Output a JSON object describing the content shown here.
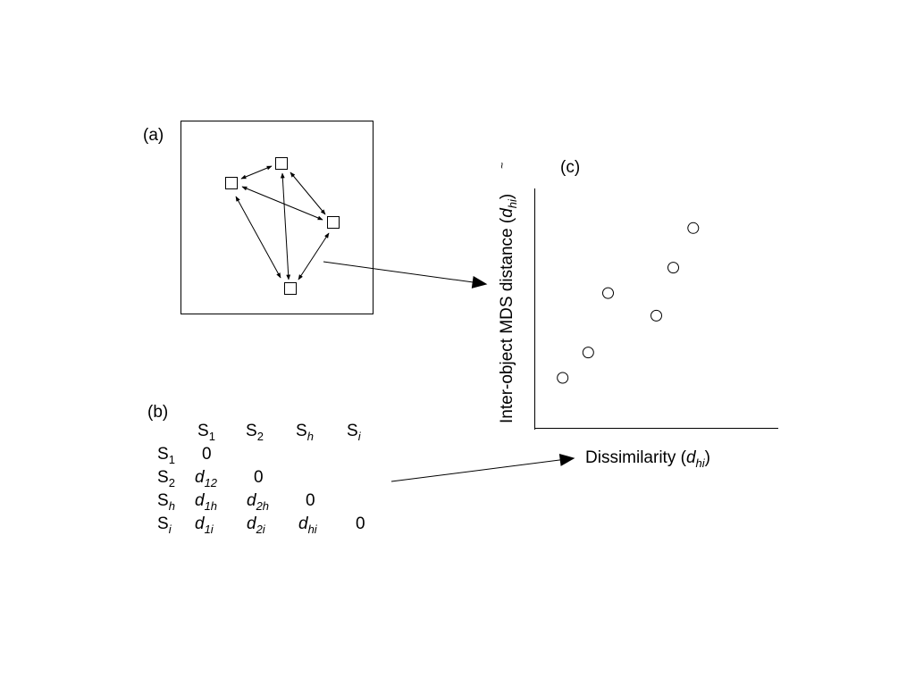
{
  "panel_a": {
    "label": "(a)"
  },
  "panel_b": {
    "label": "(b)",
    "col_headers": [
      {
        "base": "S",
        "sub": "1",
        "sub_italic": false
      },
      {
        "base": "S",
        "sub": "2",
        "sub_italic": false
      },
      {
        "base": "S",
        "sub": "h",
        "sub_italic": true
      },
      {
        "base": "S",
        "sub": "i",
        "sub_italic": true
      }
    ],
    "row_headers": [
      {
        "base": "S",
        "sub": "1",
        "sub_italic": false
      },
      {
        "base": "S",
        "sub": "2",
        "sub_italic": false
      },
      {
        "base": "S",
        "sub": "h",
        "sub_italic": true
      },
      {
        "base": "S",
        "sub": "i",
        "sub_italic": true
      }
    ],
    "rows": [
      [
        {
          "base": "0",
          "sub": "",
          "italic": false
        }
      ],
      [
        {
          "base": "d",
          "sub": "12",
          "italic": true
        },
        {
          "base": "0",
          "sub": "",
          "italic": false
        }
      ],
      [
        {
          "base": "d",
          "sub": "1h",
          "italic": true
        },
        {
          "base": "d",
          "sub": "2h",
          "italic": true
        },
        {
          "base": "0",
          "sub": "",
          "italic": false
        }
      ],
      [
        {
          "base": "d",
          "sub": "1i",
          "italic": true
        },
        {
          "base": "d",
          "sub": "2i",
          "italic": true
        },
        {
          "base": "d",
          "sub": "hi",
          "italic": true
        },
        {
          "base": "0",
          "sub": "",
          "italic": false
        }
      ]
    ]
  },
  "panel_c": {
    "label": "(c)",
    "xlabel_text": "Dissimilarity (",
    "xlabel_var": "d",
    "xlabel_sub": "hi",
    "xlabel_close": ")",
    "ylabel_text": "Inter-object MDS distance (",
    "ylabel_var": "d",
    "ylabel_sub": "hi",
    "ylabel_close": ")",
    "chart_data": {
      "type": "scatter",
      "x": [
        1.0,
        1.9,
        2.6,
        4.3,
        4.9,
        5.6
      ],
      "y": [
        1.0,
        1.9,
        4.0,
        3.2,
        4.9,
        6.3
      ],
      "xlim": [
        0,
        8.6
      ],
      "ylim": [
        -0.8,
        7.7
      ],
      "xlabel": "Dissimilarity (dhi)",
      "ylabel": "Inter-object MDS distance (dhi)",
      "grid": false
    }
  }
}
